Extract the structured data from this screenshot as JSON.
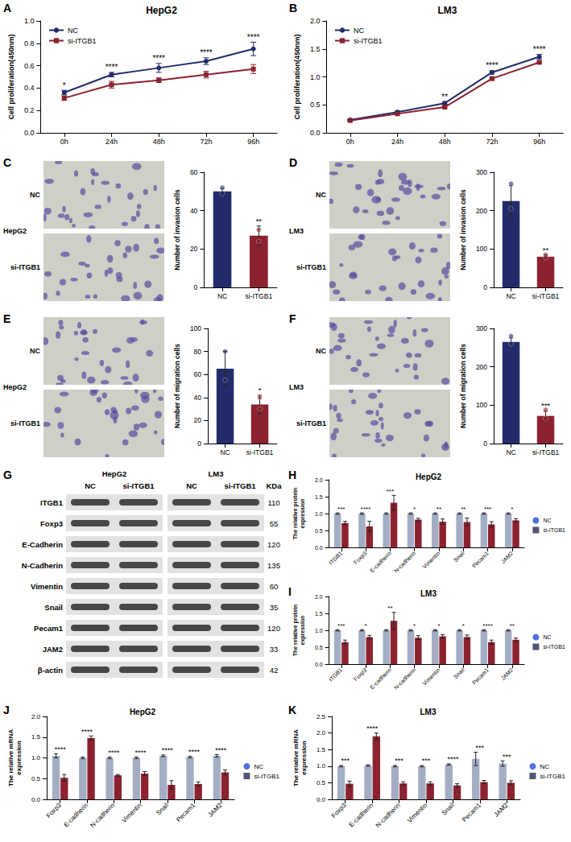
{
  "chart_data": [
    {
      "panel": "A",
      "type": "line",
      "title": "HepG2",
      "ylabel": "Cell proliferation(450nm)",
      "categories": [
        "0h",
        "24h",
        "48h",
        "72h",
        "96h"
      ],
      "series": [
        {
          "name": "NC",
          "color": "#232c6a",
          "marker": "circle",
          "values": [
            0.36,
            0.52,
            0.58,
            0.64,
            0.75
          ],
          "errors": [
            0.02,
            0.02,
            0.04,
            0.03,
            0.06
          ]
        },
        {
          "name": "si-ITGB1",
          "color": "#8c2230",
          "marker": "square",
          "values": [
            0.31,
            0.43,
            0.47,
            0.52,
            0.57
          ],
          "errors": [
            0.02,
            0.03,
            0.02,
            0.03,
            0.04
          ]
        }
      ],
      "annotations": [
        "*",
        "****",
        "****",
        "****",
        "****"
      ],
      "ylim": [
        0,
        1
      ],
      "yticks": [
        {
          "value": 0,
          "label": "0.0"
        },
        0.2,
        0.4,
        0.6,
        0.8,
        {
          "value": 1,
          "label": "1.0"
        }
      ],
      "legend": "upper left",
      "grid": false
    },
    {
      "panel": "B",
      "type": "line",
      "title": "LM3",
      "ylabel": "Cell proliferation(450nm)",
      "categories": [
        "0h",
        "24h",
        "48h",
        "72h",
        "96h"
      ],
      "series": [
        {
          "name": "NC",
          "color": "#232c6a",
          "marker": "circle",
          "values": [
            0.23,
            0.37,
            0.53,
            1.08,
            1.36
          ],
          "errors": [
            0.01,
            0.02,
            0.02,
            0.03,
            0.04
          ]
        },
        {
          "name": "si-ITGB1",
          "color": "#8c2230",
          "marker": "square",
          "values": [
            0.22,
            0.34,
            0.46,
            0.97,
            1.26
          ],
          "errors": [
            0.01,
            0.01,
            0.02,
            0.03,
            0.02
          ]
        }
      ],
      "annotations": [
        null,
        null,
        "**",
        "****",
        "****"
      ],
      "ylim": [
        0,
        2
      ],
      "yticks": [
        {
          "value": 0,
          "label": "0.0"
        },
        0.5,
        {
          "value": 1,
          "label": "1.0"
        },
        1.5,
        {
          "value": 2,
          "label": "2.0"
        }
      ],
      "legend": "upper left",
      "grid": false
    },
    {
      "panel": "C",
      "type": "bar",
      "ylabel": "Number of invasion cells",
      "micrograph": {
        "cell_line": "HepG2",
        "rows": [
          "NC",
          "si-ITGB1"
        ]
      },
      "categories": [
        "NC",
        "si-ITGB1"
      ],
      "values": [
        50,
        27
      ],
      "errors": [
        1.5,
        5
      ],
      "points": [
        [
          49,
          52
        ],
        [
          24,
          30
        ]
      ],
      "colors": [
        "#232c6a",
        "#8c2230"
      ],
      "annotations": [
        null,
        "**"
      ],
      "ylim": [
        0,
        60
      ],
      "yticks": [
        0,
        20,
        40,
        60
      ],
      "grid": false
    },
    {
      "panel": "D",
      "type": "bar",
      "ylabel": "Number of invasion cells",
      "micrograph": {
        "cell_line": "LM3",
        "rows": [
          "NC",
          "si-ITGB1"
        ]
      },
      "categories": [
        "NC",
        "si-ITGB1"
      ],
      "values": [
        225,
        80
      ],
      "errors": [
        40,
        5
      ],
      "points": [
        [
          270,
          205
        ],
        [
          85,
          78
        ]
      ],
      "colors": [
        "#232c6a",
        "#8c2230"
      ],
      "annotations": [
        null,
        "**"
      ],
      "ylim": [
        0,
        300
      ],
      "yticks": [
        0,
        100,
        200,
        300
      ],
      "grid": false
    },
    {
      "panel": "E",
      "type": "bar",
      "ylabel": "Number of migration cells",
      "micrograph": {
        "cell_line": "HepG2",
        "rows": [
          "NC",
          "si-ITGB1"
        ]
      },
      "categories": [
        "NC",
        "si-ITGB1"
      ],
      "values": [
        65,
        34
      ],
      "errors": [
        15,
        8
      ],
      "points": [
        [
          80,
          55
        ],
        [
          40,
          30
        ]
      ],
      "colors": [
        "#232c6a",
        "#8c2230"
      ],
      "annotations": [
        null,
        "*"
      ],
      "ylim": [
        0,
        100
      ],
      "yticks": [
        0,
        20,
        40,
        60,
        80,
        100
      ],
      "grid": false
    },
    {
      "panel": "F",
      "type": "bar",
      "ylabel": "Number of migration cells",
      "micrograph": {
        "cell_line": "LM3",
        "rows": [
          "NC",
          "si-ITGB1"
        ]
      },
      "categories": [
        "NC",
        "si-ITGB1"
      ],
      "values": [
        265,
        72
      ],
      "errors": [
        10,
        12
      ],
      "points": [
        [
          280,
          260
        ],
        [
          88,
          65
        ]
      ],
      "colors": [
        "#232c6a",
        "#8c2230"
      ],
      "annotations": [
        null,
        "***"
      ],
      "ylim": [
        0,
        300
      ],
      "yticks": [
        0,
        100,
        200,
        300
      ],
      "grid": false
    },
    {
      "panel": "H",
      "type": "bar",
      "title": "HepG2",
      "ylabel": "The relative protein expression",
      "categories": [
        "ITGB1",
        "Foxp3",
        "E-cadherin",
        "N-cadherin",
        "Vimentin",
        "Snail",
        "Pecam1",
        "JAM2"
      ],
      "series": [
        {
          "name": "NC",
          "color": "#a3aec4",
          "marker": "circle",
          "values": [
            1,
            1,
            1,
            1,
            1,
            1,
            1,
            1
          ],
          "errors": [
            0.02,
            0.02,
            0.02,
            0.02,
            0.02,
            0.02,
            0.02,
            0.02
          ]
        },
        {
          "name": "si-ITGB1",
          "color": "#8c2230",
          "marker": "square",
          "values": [
            0.72,
            0.62,
            1.32,
            0.82,
            0.76,
            0.75,
            0.68,
            0.8
          ],
          "errors": [
            0.05,
            0.15,
            0.22,
            0.04,
            0.08,
            0.12,
            0.08,
            0.05
          ]
        }
      ],
      "annotations": [
        "***",
        "****",
        "***",
        "*",
        "**",
        "**",
        "***",
        "*"
      ],
      "ylim": [
        0,
        2
      ],
      "yticks": [
        {
          "value": 0,
          "label": "0.0"
        },
        0.5,
        {
          "value": 1,
          "label": "1.0"
        },
        1.5,
        {
          "value": 2,
          "label": "2.0"
        }
      ],
      "legend": "right",
      "grid": false
    },
    {
      "panel": "I",
      "type": "bar",
      "title": "LM3",
      "ylabel": "The relative protein expression",
      "categories": [
        "ITGB1",
        "Foxp3",
        "E-cadherin",
        "N-cadherin",
        "Vimentin",
        "Snail",
        "Pecam1",
        "JAM2"
      ],
      "series": [
        {
          "name": "NC",
          "color": "#a3aec4",
          "marker": "circle",
          "values": [
            1,
            1,
            1,
            1,
            1,
            1,
            1,
            1
          ],
          "errors": [
            0.02,
            0.02,
            0.02,
            0.02,
            0.02,
            0.02,
            0.02,
            0.02
          ]
        },
        {
          "name": "si-ITGB1",
          "color": "#8c2230",
          "marker": "square",
          "values": [
            0.65,
            0.8,
            1.28,
            0.78,
            0.82,
            0.8,
            0.65,
            0.72
          ],
          "errors": [
            0.06,
            0.05,
            0.25,
            0.06,
            0.05,
            0.06,
            0.06,
            0.05
          ]
        }
      ],
      "annotations": [
        "***",
        "*",
        "**",
        "*",
        "*",
        "*",
        "****",
        "**"
      ],
      "ylim": [
        0,
        2
      ],
      "yticks": [
        {
          "value": 0,
          "label": "0.0"
        },
        0.5,
        {
          "value": 1,
          "label": "1.0"
        },
        1.5,
        {
          "value": 2,
          "label": "2.0"
        }
      ],
      "legend": "right",
      "grid": false
    },
    {
      "panel": "J",
      "type": "bar",
      "title": "HepG2",
      "ylabel": "The relative mRNA expression",
      "categories": [
        "Foxp3",
        "E-cadherin",
        "N-cadherin",
        "Vimentin",
        "Snail",
        "Pecam1",
        "JAM2"
      ],
      "series": [
        {
          "name": "NC",
          "color": "#a3aec4",
          "marker": "circle",
          "values": [
            1.05,
            1,
            1,
            1,
            1.05,
            1.02,
            1.05
          ],
          "errors": [
            0.05,
            0.02,
            0.02,
            0.02,
            0.02,
            0.02,
            0.03
          ]
        },
        {
          "name": "si-ITGB1",
          "color": "#8c2230",
          "marker": "square",
          "values": [
            0.52,
            1.48,
            0.58,
            0.62,
            0.35,
            0.37,
            0.65
          ],
          "errors": [
            0.08,
            0.05,
            0.02,
            0.05,
            0.1,
            0.05,
            0.06
          ]
        }
      ],
      "annotations": [
        "****",
        "****",
        "****",
        "****",
        "****",
        "****",
        "****"
      ],
      "ylim": [
        0,
        2
      ],
      "yticks": [
        {
          "value": 0,
          "label": "0.0"
        },
        0.5,
        {
          "value": 1,
          "label": "1.0"
        },
        1.5,
        {
          "value": 2,
          "label": "2.0"
        }
      ],
      "legend": "right",
      "grid": false
    },
    {
      "panel": "K",
      "type": "bar",
      "title": "LM3",
      "ylabel": "The relative mRNA expression",
      "categories": [
        "Foxp3",
        "E-cadherin",
        "N-cadherin",
        "Vimentin",
        "Snail",
        "Pecam1",
        "JAM2"
      ],
      "series": [
        {
          "name": "NC",
          "color": "#a3aec4",
          "marker": "circle",
          "values": [
            1,
            1.02,
            1,
            1,
            1.05,
            1.22,
            1.08
          ],
          "errors": [
            0.02,
            0.02,
            0.02,
            0.02,
            0.02,
            0.2,
            0.08
          ]
        },
        {
          "name": "si-ITGB1",
          "color": "#8c2230",
          "marker": "square",
          "values": [
            0.47,
            1.9,
            0.48,
            0.48,
            0.42,
            0.52,
            0.5
          ],
          "errors": [
            0.08,
            0.1,
            0.05,
            0.05,
            0.05,
            0.05,
            0.06
          ]
        }
      ],
      "annotations": [
        "***",
        "****",
        "***",
        "***",
        "****",
        "***",
        "***"
      ],
      "ylim": [
        0,
        2.5
      ],
      "yticks": [
        {
          "value": 0,
          "label": "0.0"
        },
        0.5,
        {
          "value": 1,
          "label": "1.0"
        },
        1.5,
        {
          "value": 2,
          "label": "2.0"
        },
        2.5
      ],
      "legend": "right",
      "grid": false
    }
  ],
  "blot": {
    "panel": "G",
    "groups": [
      "HepG2",
      "LM3"
    ],
    "lanes": [
      "NC",
      "si-ITGB1"
    ],
    "unit": "KDa",
    "rows": [
      {
        "label": "ITGB1",
        "kda": 110
      },
      {
        "label": "Foxp3",
        "kda": 55
      },
      {
        "label": "E-Cadherin",
        "kda": 120
      },
      {
        "label": "N-Cadherin",
        "kda": 135
      },
      {
        "label": "Vimentin",
        "kda": 60
      },
      {
        "label": "Snail",
        "kda": 35
      },
      {
        "label": "Pecam1",
        "kda": 120
      },
      {
        "label": "JAM2",
        "kda": 33
      },
      {
        "label": "β-actin",
        "kda": 42
      }
    ]
  }
}
